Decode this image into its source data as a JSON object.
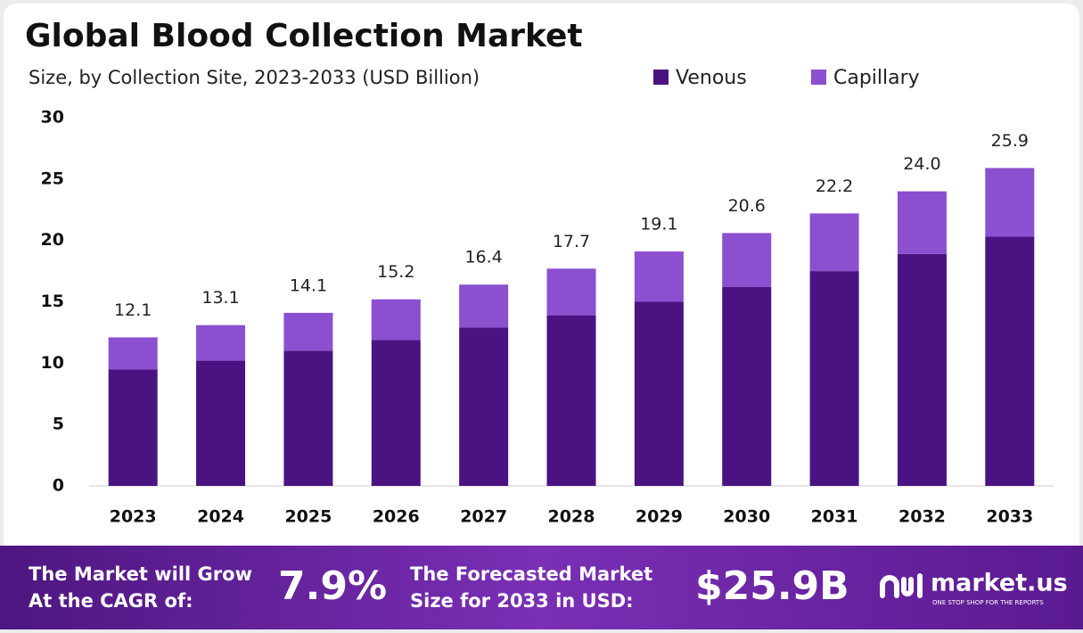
{
  "chart_data": {
    "type": "stacked-bar",
    "title": "Global Blood Collection Market",
    "subtitle": "Size, by Collection Site, 2023-2033 (USD Billion)",
    "categories": [
      "2023",
      "2024",
      "2025",
      "2026",
      "2027",
      "2028",
      "2029",
      "2030",
      "2031",
      "2032",
      "2033"
    ],
    "series": [
      {
        "name": "Venous",
        "color": "#4b1382",
        "values": [
          9.5,
          10.2,
          11.0,
          11.9,
          12.9,
          13.9,
          15.0,
          16.2,
          17.5,
          18.9,
          20.3
        ]
      },
      {
        "name": "Capillary",
        "color": "#8b4fd0",
        "values": [
          2.6,
          2.9,
          3.1,
          3.3,
          3.5,
          3.8,
          4.1,
          4.4,
          4.7,
          5.1,
          5.6
        ]
      }
    ],
    "totals": [
      12.1,
      13.1,
      14.1,
      15.2,
      16.4,
      17.7,
      19.1,
      20.6,
      22.2,
      24.0,
      25.9
    ],
    "total_labels": [
      "12.1",
      "13.1",
      "14.1",
      "15.2",
      "16.4",
      "17.7",
      "19.1",
      "20.6",
      "22.2",
      "24.0",
      "25.9"
    ],
    "ylim": [
      0,
      30
    ],
    "yticks": [
      0,
      5,
      10,
      15,
      20,
      25,
      30
    ],
    "grid": false,
    "legend": "top-right"
  },
  "footer": {
    "cagr_text": [
      "The Market will Grow",
      "At the CAGR of:"
    ],
    "cagr_value": "7.9%",
    "forecast_text": [
      "The Forecasted Market",
      "Size for 2033 in USD:"
    ],
    "forecast_value": "$25.9B",
    "brand": "market.us",
    "tagline": "ONE STOP SHOP FOR THE REPORTS"
  }
}
